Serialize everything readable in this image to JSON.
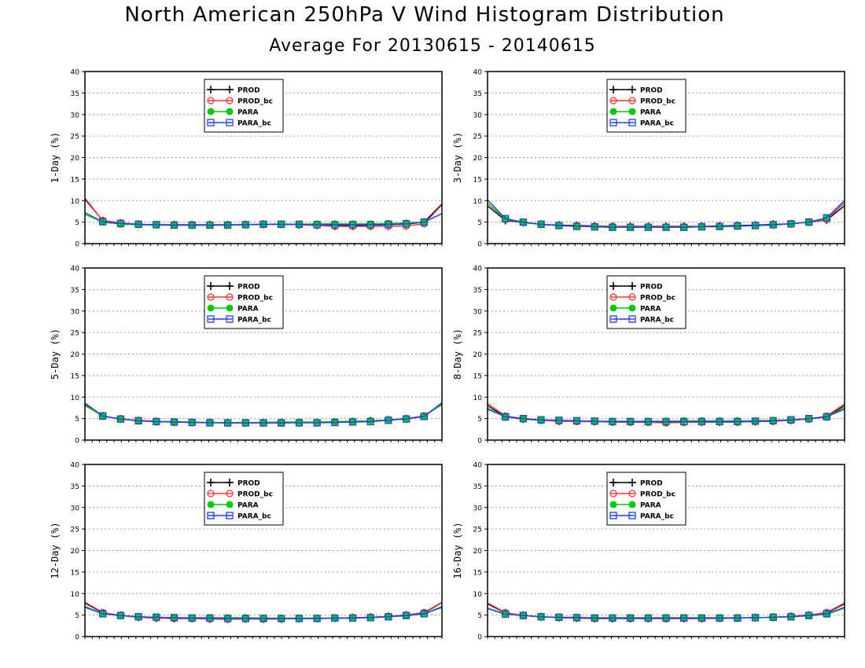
{
  "title": "North American 250hPa V Wind Histogram Distribution",
  "subtitle": "Average For 20130615 - 20140615",
  "legend_labels": [
    "PROD",
    "PROD_bc",
    "PARA",
    "PARA_bc"
  ],
  "series_colors": {
    "PROD": "#000000",
    "PROD_bc": "#ff3333",
    "PARA": "#00cc00",
    "PARA_bc": "#1f3fff"
  },
  "chart_data": [
    {
      "type": "line",
      "ylabel": "1-Day (%)",
      "ylim": [
        0,
        40
      ],
      "yticks": [
        0,
        5,
        10,
        15,
        20,
        25,
        30,
        35,
        40
      ],
      "grid": "horizontal dotted",
      "legend_position": "top-left",
      "x": [
        1,
        2,
        3,
        4,
        5,
        6,
        7,
        8,
        9,
        10,
        11,
        12,
        13,
        14,
        15,
        16,
        17,
        18,
        19,
        20,
        21
      ],
      "series": [
        {
          "name": "PROD",
          "values": [
            10.5,
            5.3,
            4.8,
            4.5,
            4.4,
            4.4,
            4.4,
            4.4,
            4.4,
            4.4,
            4.5,
            4.5,
            4.4,
            4.3,
            4.2,
            4.2,
            4.3,
            4.4,
            4.5,
            5.0,
            9.2
          ]
        },
        {
          "name": "PROD_bc",
          "values": [
            10.2,
            5.4,
            4.8,
            4.5,
            4.4,
            4.4,
            4.4,
            4.4,
            4.4,
            4.5,
            4.5,
            4.5,
            4.4,
            4.2,
            4.0,
            4.0,
            4.0,
            4.0,
            4.1,
            4.6,
            9.0
          ]
        },
        {
          "name": "PARA",
          "values": [
            6.8,
            5.0,
            4.5,
            4.4,
            4.3,
            4.3,
            4.3,
            4.3,
            4.4,
            4.4,
            4.5,
            4.6,
            4.5,
            4.6,
            4.6,
            4.6,
            4.6,
            4.7,
            4.8,
            5.0,
            7.0
          ]
        },
        {
          "name": "PARA_bc",
          "values": [
            7.2,
            5.1,
            4.7,
            4.5,
            4.4,
            4.3,
            4.3,
            4.3,
            4.3,
            4.4,
            4.5,
            4.5,
            4.5,
            4.4,
            4.4,
            4.4,
            4.4,
            4.5,
            4.6,
            5.0,
            7.0
          ]
        }
      ]
    },
    {
      "type": "line",
      "ylabel": "3-Day (%)",
      "ylim": [
        0,
        40
      ],
      "yticks": [
        0,
        5,
        10,
        15,
        20,
        25,
        30,
        35,
        40
      ],
      "grid": "horizontal dotted",
      "legend_position": "top-left",
      "x": [
        1,
        2,
        3,
        4,
        5,
        6,
        7,
        8,
        9,
        10,
        11,
        12,
        13,
        14,
        15,
        16,
        17,
        18,
        19,
        20,
        21
      ],
      "series": [
        {
          "name": "PROD",
          "values": [
            8.8,
            5.4,
            4.9,
            4.5,
            4.3,
            4.2,
            4.1,
            4.0,
            4.0,
            4.0,
            4.0,
            4.0,
            4.0,
            4.1,
            4.2,
            4.3,
            4.5,
            4.6,
            5.0,
            5.5,
            8.8
          ]
        },
        {
          "name": "PROD_bc",
          "values": [
            9.5,
            5.6,
            4.9,
            4.5,
            4.2,
            4.1,
            4.0,
            4.0,
            3.9,
            3.9,
            3.9,
            3.9,
            4.0,
            4.0,
            4.1,
            4.2,
            4.4,
            4.6,
            5.0,
            5.6,
            9.5
          ]
        },
        {
          "name": "PARA",
          "values": [
            9.5,
            5.7,
            4.9,
            4.5,
            4.2,
            4.0,
            3.9,
            3.8,
            3.8,
            3.8,
            3.8,
            3.8,
            3.9,
            3.9,
            4.0,
            4.2,
            4.3,
            4.6,
            5.0,
            5.9,
            10.0
          ]
        },
        {
          "name": "PARA_bc",
          "values": [
            10.2,
            5.8,
            5.0,
            4.5,
            4.2,
            4.0,
            3.9,
            3.8,
            3.8,
            3.8,
            3.8,
            3.8,
            3.9,
            4.0,
            4.1,
            4.2,
            4.4,
            4.6,
            5.0,
            6.0,
            10.0
          ]
        }
      ]
    },
    {
      "type": "line",
      "ylabel": "5-Day (%)",
      "ylim": [
        0,
        40
      ],
      "yticks": [
        0,
        5,
        10,
        15,
        20,
        25,
        30,
        35,
        40
      ],
      "grid": "horizontal dotted",
      "legend_position": "top-left",
      "x": [
        1,
        2,
        3,
        4,
        5,
        6,
        7,
        8,
        9,
        10,
        11,
        12,
        13,
        14,
        15,
        16,
        17,
        18,
        19,
        20,
        21
      ],
      "series": [
        {
          "name": "PROD",
          "values": [
            8.2,
            5.6,
            4.9,
            4.5,
            4.3,
            4.2,
            4.1,
            4.1,
            4.0,
            4.0,
            4.0,
            4.0,
            4.1,
            4.1,
            4.2,
            4.3,
            4.5,
            4.7,
            5.0,
            5.6,
            8.3
          ]
        },
        {
          "name": "PROD_bc",
          "values": [
            8.4,
            5.6,
            4.9,
            4.6,
            4.4,
            4.2,
            4.2,
            4.1,
            4.0,
            4.0,
            4.0,
            4.0,
            4.1,
            4.1,
            4.2,
            4.3,
            4.5,
            4.7,
            5.0,
            5.6,
            8.6
          ]
        },
        {
          "name": "PARA",
          "values": [
            8.0,
            5.6,
            4.9,
            4.5,
            4.3,
            4.3,
            4.2,
            4.1,
            4.1,
            4.1,
            4.1,
            4.2,
            4.2,
            4.2,
            4.3,
            4.4,
            4.5,
            4.7,
            5.0,
            5.5,
            8.4
          ]
        },
        {
          "name": "PARA_bc",
          "values": [
            8.6,
            5.6,
            4.9,
            4.5,
            4.3,
            4.2,
            4.1,
            4.0,
            4.0,
            4.0,
            4.0,
            4.0,
            4.0,
            4.0,
            4.1,
            4.2,
            4.3,
            4.6,
            4.9,
            5.5,
            8.7
          ]
        }
      ]
    },
    {
      "type": "line",
      "ylabel": "8-Day (%)",
      "ylim": [
        0,
        40
      ],
      "yticks": [
        0,
        5,
        10,
        15,
        20,
        25,
        30,
        35,
        40
      ],
      "grid": "horizontal dotted",
      "legend_position": "top-left",
      "x": [
        1,
        2,
        3,
        4,
        5,
        6,
        7,
        8,
        9,
        10,
        11,
        12,
        13,
        14,
        15,
        16,
        17,
        18,
        19,
        20,
        21
      ],
      "series": [
        {
          "name": "PROD",
          "values": [
            8.0,
            5.4,
            4.9,
            4.6,
            4.4,
            4.4,
            4.3,
            4.2,
            4.2,
            4.2,
            4.2,
            4.2,
            4.2,
            4.2,
            4.2,
            4.3,
            4.4,
            4.6,
            4.9,
            5.4,
            8.0
          ]
        },
        {
          "name": "PROD_bc",
          "values": [
            8.5,
            5.6,
            5.0,
            4.6,
            4.4,
            4.3,
            4.3,
            4.2,
            4.2,
            4.1,
            4.0,
            4.1,
            4.2,
            4.2,
            4.2,
            4.3,
            4.4,
            4.6,
            4.9,
            5.6,
            8.4
          ]
        },
        {
          "name": "PARA",
          "values": [
            7.4,
            5.4,
            5.0,
            4.7,
            4.6,
            4.5,
            4.4,
            4.4,
            4.4,
            4.4,
            4.4,
            4.5,
            4.5,
            4.5,
            4.5,
            4.5,
            4.6,
            4.7,
            5.0,
            5.4,
            7.5
          ]
        },
        {
          "name": "PARA_bc",
          "values": [
            7.2,
            5.4,
            5.0,
            4.7,
            4.6,
            4.5,
            4.4,
            4.3,
            4.3,
            4.3,
            4.3,
            4.3,
            4.3,
            4.3,
            4.3,
            4.4,
            4.5,
            4.7,
            5.0,
            5.4,
            7.2
          ]
        }
      ]
    },
    {
      "type": "line",
      "ylabel": "12-Day (%)",
      "ylim": [
        0,
        40
      ],
      "yticks": [
        0,
        5,
        10,
        15,
        20,
        25,
        30,
        35,
        40
      ],
      "grid": "horizontal dotted",
      "legend_position": "top-left",
      "x": [
        1,
        2,
        3,
        4,
        5,
        6,
        7,
        8,
        9,
        10,
        11,
        12,
        13,
        14,
        15,
        16,
        17,
        18,
        19,
        20,
        21
      ],
      "series": [
        {
          "name": "PROD",
          "values": [
            7.8,
            5.5,
            4.9,
            4.5,
            4.3,
            4.2,
            4.2,
            4.1,
            4.1,
            4.1,
            4.1,
            4.1,
            4.2,
            4.2,
            4.3,
            4.4,
            4.5,
            4.7,
            5.0,
            5.5,
            7.9
          ]
        },
        {
          "name": "PROD_bc",
          "values": [
            8.0,
            5.6,
            4.9,
            4.5,
            4.3,
            4.2,
            4.2,
            4.1,
            4.0,
            4.1,
            4.1,
            4.1,
            4.2,
            4.2,
            4.3,
            4.4,
            4.5,
            4.7,
            5.0,
            5.6,
            8.0
          ]
        },
        {
          "name": "PARA",
          "values": [
            7.0,
            5.3,
            4.9,
            4.6,
            4.5,
            4.4,
            4.4,
            4.4,
            4.4,
            4.4,
            4.3,
            4.3,
            4.3,
            4.3,
            4.3,
            4.3,
            4.4,
            4.6,
            4.8,
            5.3,
            7.0
          ]
        },
        {
          "name": "PARA_bc",
          "values": [
            6.8,
            5.3,
            4.9,
            4.6,
            4.5,
            4.4,
            4.3,
            4.3,
            4.2,
            4.2,
            4.2,
            4.2,
            4.2,
            4.2,
            4.3,
            4.3,
            4.4,
            4.6,
            4.9,
            5.3,
            6.8
          ]
        }
      ]
    },
    {
      "type": "line",
      "ylabel": "16-Day (%)",
      "ylim": [
        0,
        40
      ],
      "yticks": [
        0,
        5,
        10,
        15,
        20,
        25,
        30,
        35,
        40
      ],
      "grid": "horizontal dotted",
      "legend_position": "top-left",
      "x": [
        1,
        2,
        3,
        4,
        5,
        6,
        7,
        8,
        9,
        10,
        11,
        12,
        13,
        14,
        15,
        16,
        17,
        18,
        19,
        20,
        21
      ],
      "series": [
        {
          "name": "PROD",
          "values": [
            7.6,
            5.5,
            4.9,
            4.6,
            4.4,
            4.3,
            4.2,
            4.2,
            4.2,
            4.2,
            4.2,
            4.2,
            4.2,
            4.3,
            4.3,
            4.4,
            4.5,
            4.7,
            5.0,
            5.5,
            7.6
          ]
        },
        {
          "name": "PROD_bc",
          "values": [
            7.8,
            5.6,
            4.9,
            4.6,
            4.4,
            4.3,
            4.2,
            4.2,
            4.2,
            4.2,
            4.1,
            4.2,
            4.2,
            4.2,
            4.3,
            4.4,
            4.5,
            4.7,
            5.0,
            5.6,
            7.8
          ]
        },
        {
          "name": "PARA",
          "values": [
            6.6,
            5.3,
            4.9,
            4.6,
            4.5,
            4.5,
            4.4,
            4.4,
            4.4,
            4.4,
            4.4,
            4.4,
            4.4,
            4.4,
            4.4,
            4.4,
            4.5,
            4.6,
            4.8,
            5.2,
            6.6
          ]
        },
        {
          "name": "PARA_bc",
          "values": [
            6.5,
            5.2,
            4.9,
            4.6,
            4.5,
            4.4,
            4.3,
            4.3,
            4.3,
            4.3,
            4.3,
            4.3,
            4.3,
            4.3,
            4.3,
            4.4,
            4.5,
            4.6,
            4.9,
            5.3,
            6.8
          ]
        }
      ]
    }
  ]
}
